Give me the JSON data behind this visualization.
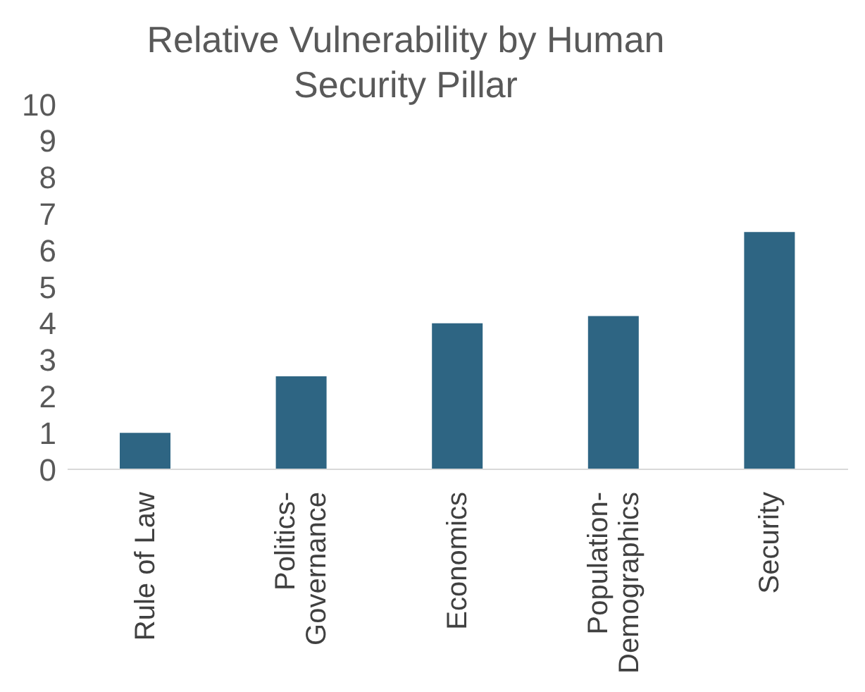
{
  "chart_data": {
    "type": "bar",
    "title": "Relative Vulnerability by Human Security Pillar",
    "categories": [
      "Rule of Law",
      "Politics-Governance",
      "Economics",
      "Population-Demographics",
      "Security"
    ],
    "values": [
      1.0,
      2.55,
      4.0,
      4.2,
      6.5
    ],
    "color": "#2e6583",
    "ylim": [
      0,
      10
    ],
    "yticks": [
      0,
      1,
      2,
      3,
      4,
      5,
      6,
      7,
      8,
      9,
      10
    ],
    "grid": false,
    "legend": false
  }
}
